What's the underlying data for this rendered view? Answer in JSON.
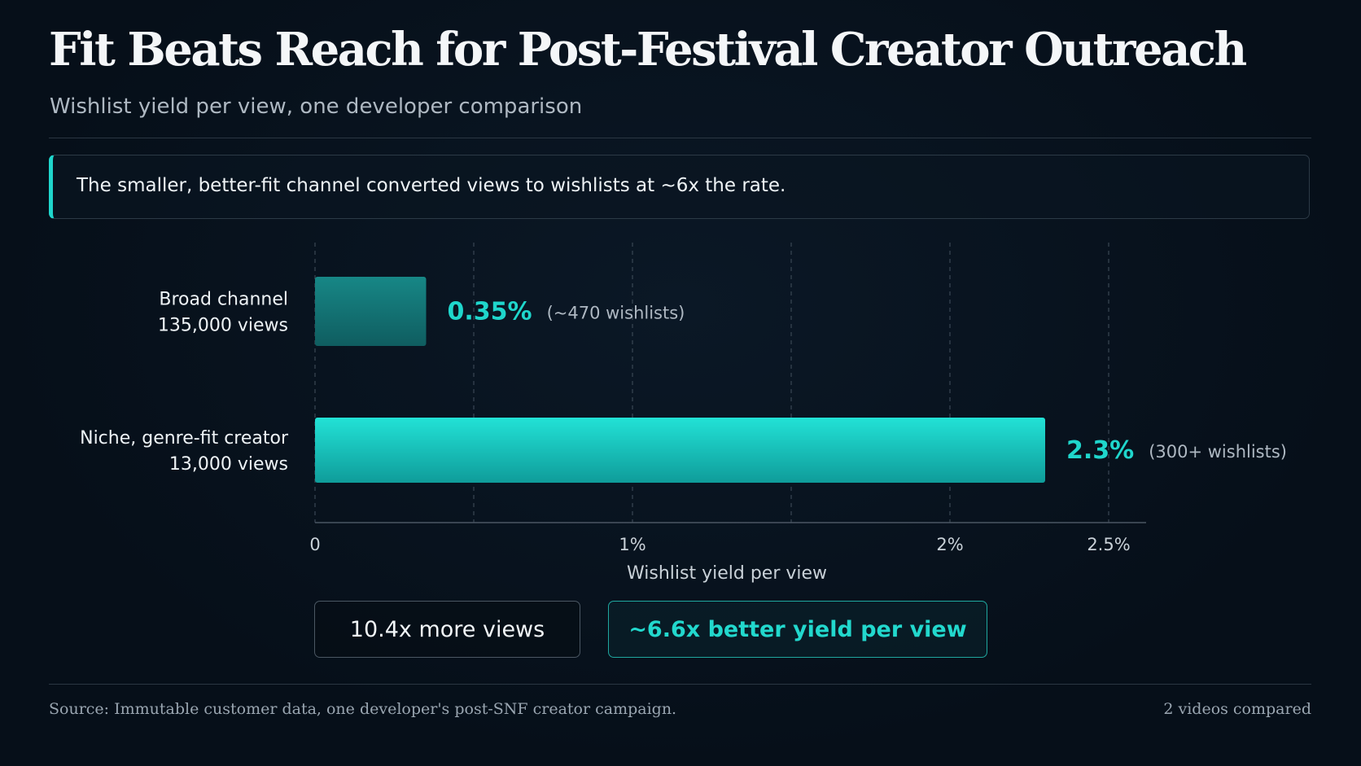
{
  "header": {
    "title": "Fit Beats Reach for Post-Festival Creator Outreach",
    "subtitle": "Wishlist yield per view, one developer comparison"
  },
  "callout": {
    "text": "The smaller, better-fit channel converted views to wishlists at ~6x the rate."
  },
  "chart_data": {
    "type": "bar",
    "orientation": "horizontal",
    "categories": [
      [
        "Broad channel",
        "135,000 views"
      ],
      [
        "Niche, genre-fit creator",
        "13,000 views"
      ]
    ],
    "values": [
      0.35,
      2.3
    ],
    "value_labels": [
      "0.35%",
      "2.3%"
    ],
    "annotations": [
      "(~470 wishlists)",
      "(300+ wishlists)"
    ],
    "xlabel": "Wishlist yield per view",
    "xlim": [
      0,
      2.55
    ],
    "ticks": [
      {
        "value": 0,
        "label": "0"
      },
      {
        "value": 1,
        "label": "1%"
      },
      {
        "value": 2,
        "label": "2%"
      },
      {
        "value": 2.5,
        "label": "2.5%"
      }
    ],
    "gridlines": [
      0,
      0.5,
      1,
      1.5,
      2,
      2.5
    ],
    "grid": true,
    "colors": [
      "#17807f",
      "#1fd6cc"
    ]
  },
  "stats": {
    "views_multiple": "10.4x more views",
    "yield_multiple": "~6.6x better yield per view"
  },
  "footer": {
    "source": "Source: Immutable customer data, one developer's post-SNF creator campaign.",
    "count": "2 videos compared"
  },
  "colors": {
    "accent": "#1fd6cc",
    "background": "#07111c"
  }
}
